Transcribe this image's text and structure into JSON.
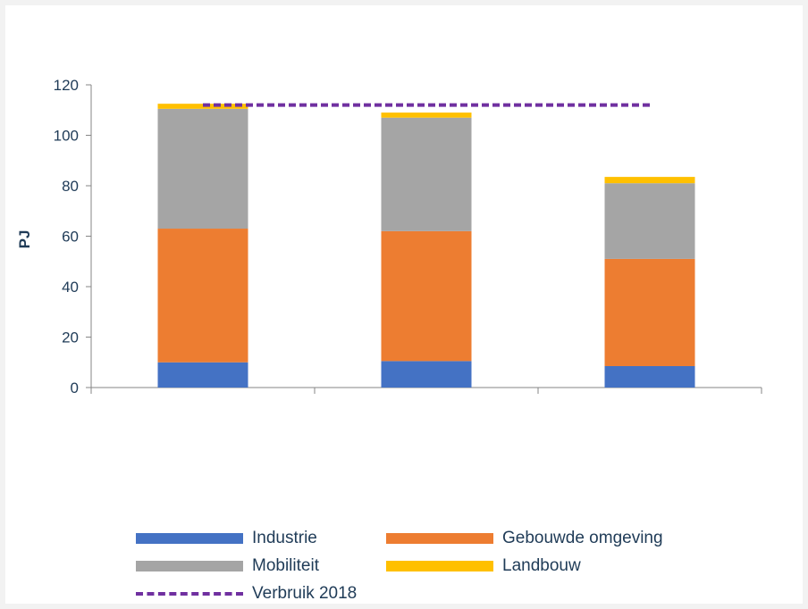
{
  "chart_data": {
    "type": "bar",
    "stacked": true,
    "categories": [
      "",
      "",
      ""
    ],
    "ylabel": "PJ",
    "ylim": [
      0,
      120
    ],
    "yticks": [
      0,
      20,
      40,
      60,
      80,
      100,
      120
    ],
    "grid": false,
    "legend_position": "bottom",
    "series": [
      {
        "name": "Industrie",
        "color": "#4472c4",
        "values": [
          10,
          10.5,
          8.5
        ]
      },
      {
        "name": "Gebouwde omgeving",
        "color": "#ed7d31",
        "values": [
          53,
          51.5,
          42.5
        ]
      },
      {
        "name": "Mobiliteit",
        "color": "#a5a5a5",
        "values": [
          47.5,
          45,
          30
        ]
      },
      {
        "name": "Landbouw",
        "color": "#ffc000",
        "values": [
          2,
          2,
          2.5
        ]
      }
    ],
    "reference_line": {
      "name": "Verbruik 2018",
      "value": 112,
      "color": "#7030a0",
      "style": "dashed"
    }
  }
}
